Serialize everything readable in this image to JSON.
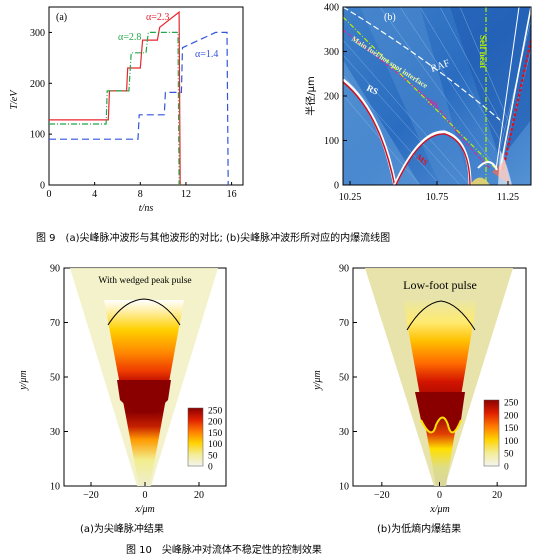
{
  "figure9": {
    "caption": "图 9　(a)尖峰脉冲波形与其他波形的对比; (b)尖峰脉冲波形所对应的内爆流线图",
    "panel_a": {
      "tag": "(a)",
      "ylabel": "T/eV",
      "xlabel": "t/ns",
      "xticks": [
        "0",
        "4",
        "8",
        "12",
        "16"
      ],
      "yticks": [
        "0",
        "100",
        "200",
        "300"
      ],
      "legend": [
        {
          "label": "α=2.3",
          "color": "#e8262e"
        },
        {
          "label": "α=2.8",
          "color": "#22a84a"
        },
        {
          "label": "α=1.4",
          "color": "#3355dd"
        }
      ]
    },
    "panel_b": {
      "tag": "(b)",
      "ylabel": "半径/μm",
      "xticks": [
        "10.25",
        "10.75",
        "11.25"
      ],
      "yticks": [
        "0",
        "100",
        "200",
        "300",
        "400"
      ],
      "labels": {
        "raf": "RAF",
        "main_fuel": "Main fuel/hot spot interface",
        "rs": "RS",
        "es": "ES",
        "ms": "MS",
        "self_heat": "Self heat"
      }
    }
  },
  "figure10": {
    "caption": "图 10　尖峰脉冲对流体不稳定性的控制效果",
    "left": {
      "title": "With wedged peak pulse",
      "sub_caption": "(a)为尖峰脉冲结果",
      "ylabel": "y/μm",
      "xlabel": "x/μm",
      "xticks": [
        "−20",
        "0",
        "20"
      ],
      "yticks": [
        "10",
        "30",
        "50",
        "70",
        "90"
      ],
      "colorbar_ticks": [
        "250",
        "200",
        "150",
        "100",
        "50",
        "0"
      ]
    },
    "right": {
      "title": "Low-foot pulse",
      "sub_caption": "(b)为低熵内爆结果",
      "ylabel": "y/μm",
      "xlabel": "x/μm",
      "xticks": [
        "−20",
        "0",
        "20"
      ],
      "yticks": [
        "10",
        "30",
        "50",
        "70",
        "90"
      ],
      "colorbar_ticks": [
        "250",
        "200",
        "150",
        "100",
        "50",
        "0"
      ]
    }
  },
  "chart_data": [
    {
      "type": "line",
      "xlabel": "t/ns",
      "ylabel": "T/eV",
      "xlim": [
        0,
        17
      ],
      "ylim": [
        0,
        350
      ],
      "series": [
        {
          "name": "α=2.3",
          "x": [
            0,
            5.2,
            5.3,
            6.8,
            6.9,
            8.0,
            8.2,
            9.5,
            9.7,
            11.4,
            11.5
          ],
          "y": [
            128,
            128,
            185,
            185,
            230,
            230,
            285,
            285,
            310,
            340,
            0
          ]
        },
        {
          "name": "α=2.8",
          "x": [
            0,
            5.0,
            5.1,
            7.0,
            7.2,
            8.5,
            8.7,
            11.3,
            11.4
          ],
          "y": [
            120,
            120,
            185,
            185,
            260,
            260,
            300,
            300,
            0
          ]
        },
        {
          "name": "α=1.4",
          "x": [
            0,
            7.8,
            7.9,
            10.1,
            10.2,
            11.6,
            11.7,
            14.6,
            14.8,
            15.6,
            15.7
          ],
          "y": [
            90,
            90,
            138,
            138,
            182,
            182,
            270,
            300,
            300,
            300,
            0
          ]
        }
      ]
    }
  ]
}
